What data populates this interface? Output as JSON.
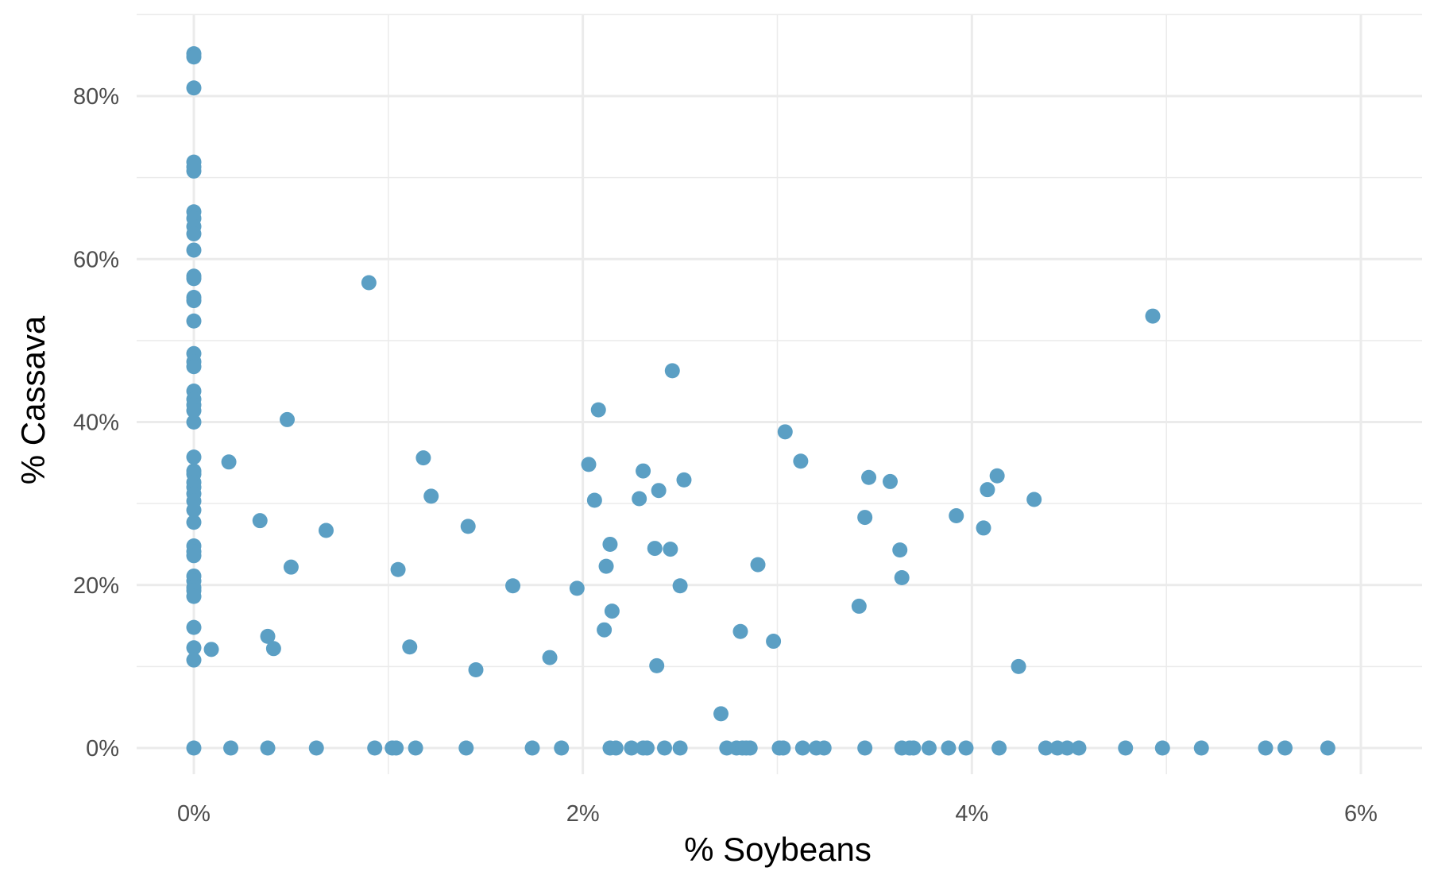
{
  "chart_data": {
    "type": "scatter",
    "title": "",
    "xlabel": "% Soybeans",
    "ylabel": "% Cassava",
    "xlim": [
      -0.3,
      6.2
    ],
    "ylim": [
      -3.5,
      88
    ],
    "x_ticks": [
      0,
      2,
      4,
      6
    ],
    "y_ticks": [
      0,
      20,
      40,
      60,
      80
    ],
    "x_tick_labels": [
      "0%",
      "2%",
      "4%",
      "6%"
    ],
    "y_tick_labels": [
      "0%",
      "20%",
      "40%",
      "60%",
      "80%"
    ],
    "grid": true,
    "point_color": "#5b9fc4",
    "points": [
      {
        "x": 0,
        "y": 85.2
      },
      {
        "x": 0,
        "y": 84.8
      },
      {
        "x": 0,
        "y": 81.0
      },
      {
        "x": 0,
        "y": 71.9
      },
      {
        "x": 0,
        "y": 71.3
      },
      {
        "x": 0,
        "y": 70.8
      },
      {
        "x": 0,
        "y": 65.8
      },
      {
        "x": 0,
        "y": 65.0
      },
      {
        "x": 0,
        "y": 64.0
      },
      {
        "x": 0,
        "y": 63.1
      },
      {
        "x": 0,
        "y": 61.1
      },
      {
        "x": 0,
        "y": 57.9
      },
      {
        "x": 0,
        "y": 57.6
      },
      {
        "x": 0,
        "y": 55.3
      },
      {
        "x": 0,
        "y": 54.9
      },
      {
        "x": 0,
        "y": 52.4
      },
      {
        "x": 0,
        "y": 48.4
      },
      {
        "x": 0,
        "y": 47.4
      },
      {
        "x": 0,
        "y": 46.8
      },
      {
        "x": 0,
        "y": 43.8
      },
      {
        "x": 0,
        "y": 42.8
      },
      {
        "x": 0,
        "y": 42.1
      },
      {
        "x": 0,
        "y": 41.4
      },
      {
        "x": 0,
        "y": 40.0
      },
      {
        "x": 0,
        "y": 35.7
      },
      {
        "x": 0,
        "y": 34.0
      },
      {
        "x": 0,
        "y": 33.6
      },
      {
        "x": 0,
        "y": 32.6
      },
      {
        "x": 0,
        "y": 32.0
      },
      {
        "x": 0,
        "y": 31.2
      },
      {
        "x": 0,
        "y": 30.3
      },
      {
        "x": 0,
        "y": 29.2
      },
      {
        "x": 0,
        "y": 27.7
      },
      {
        "x": 0,
        "y": 24.8
      },
      {
        "x": 0,
        "y": 24.1
      },
      {
        "x": 0,
        "y": 23.6
      },
      {
        "x": 0,
        "y": 21.1
      },
      {
        "x": 0,
        "y": 20.5
      },
      {
        "x": 0,
        "y": 19.7
      },
      {
        "x": 0,
        "y": 19.3
      },
      {
        "x": 0,
        "y": 18.6
      },
      {
        "x": 0,
        "y": 14.8
      },
      {
        "x": 0,
        "y": 12.3
      },
      {
        "x": 0,
        "y": 10.8
      },
      {
        "x": 0,
        "y": 0
      },
      {
        "x": 0.09,
        "y": 12.1
      },
      {
        "x": 0.18,
        "y": 35.1
      },
      {
        "x": 0.34,
        "y": 27.9
      },
      {
        "x": 0.38,
        "y": 13.7
      },
      {
        "x": 0.41,
        "y": 12.2
      },
      {
        "x": 0.48,
        "y": 40.3
      },
      {
        "x": 0.5,
        "y": 22.2
      },
      {
        "x": 0.68,
        "y": 26.7
      },
      {
        "x": 0.9,
        "y": 57.1
      },
      {
        "x": 1.05,
        "y": 21.9
      },
      {
        "x": 1.11,
        "y": 12.4
      },
      {
        "x": 1.18,
        "y": 35.6
      },
      {
        "x": 1.22,
        "y": 30.9
      },
      {
        "x": 1.41,
        "y": 27.2
      },
      {
        "x": 1.45,
        "y": 9.6
      },
      {
        "x": 1.64,
        "y": 19.9
      },
      {
        "x": 1.83,
        "y": 11.1
      },
      {
        "x": 1.97,
        "y": 19.6
      },
      {
        "x": 2.03,
        "y": 34.8
      },
      {
        "x": 2.06,
        "y": 30.4
      },
      {
        "x": 2.08,
        "y": 41.5
      },
      {
        "x": 2.11,
        "y": 14.5
      },
      {
        "x": 2.12,
        "y": 22.3
      },
      {
        "x": 2.14,
        "y": 25.0
      },
      {
        "x": 2.15,
        "y": 16.8
      },
      {
        "x": 2.29,
        "y": 30.6
      },
      {
        "x": 2.31,
        "y": 34.0
      },
      {
        "x": 2.37,
        "y": 24.5
      },
      {
        "x": 2.38,
        "y": 10.1
      },
      {
        "x": 2.39,
        "y": 31.6
      },
      {
        "x": 2.45,
        "y": 24.4
      },
      {
        "x": 2.46,
        "y": 46.3
      },
      {
        "x": 2.5,
        "y": 19.9
      },
      {
        "x": 2.52,
        "y": 32.9
      },
      {
        "x": 2.71,
        "y": 4.2
      },
      {
        "x": 2.81,
        "y": 14.3
      },
      {
        "x": 2.9,
        "y": 22.5
      },
      {
        "x": 2.98,
        "y": 13.1
      },
      {
        "x": 3.04,
        "y": 38.8
      },
      {
        "x": 3.12,
        "y": 35.2
      },
      {
        "x": 3.42,
        "y": 17.4
      },
      {
        "x": 3.45,
        "y": 28.3
      },
      {
        "x": 3.47,
        "y": 33.2
      },
      {
        "x": 3.58,
        "y": 32.7
      },
      {
        "x": 3.63,
        "y": 24.3
      },
      {
        "x": 3.64,
        "y": 20.9
      },
      {
        "x": 3.92,
        "y": 28.5
      },
      {
        "x": 4.06,
        "y": 27.0
      },
      {
        "x": 4.08,
        "y": 31.7
      },
      {
        "x": 4.13,
        "y": 33.4
      },
      {
        "x": 4.24,
        "y": 10.0
      },
      {
        "x": 4.32,
        "y": 30.5
      },
      {
        "x": 4.93,
        "y": 53.0
      },
      {
        "x": 0.19,
        "y": 0
      },
      {
        "x": 0.38,
        "y": 0
      },
      {
        "x": 0.63,
        "y": 0
      },
      {
        "x": 0.93,
        "y": 0
      },
      {
        "x": 1.02,
        "y": 0
      },
      {
        "x": 1.04,
        "y": 0
      },
      {
        "x": 1.14,
        "y": 0
      },
      {
        "x": 1.4,
        "y": 0
      },
      {
        "x": 1.74,
        "y": 0
      },
      {
        "x": 1.89,
        "y": 0
      },
      {
        "x": 2.14,
        "y": 0
      },
      {
        "x": 2.17,
        "y": 0
      },
      {
        "x": 2.25,
        "y": 0
      },
      {
        "x": 2.31,
        "y": 0
      },
      {
        "x": 2.33,
        "y": 0
      },
      {
        "x": 2.42,
        "y": 0
      },
      {
        "x": 2.5,
        "y": 0
      },
      {
        "x": 2.74,
        "y": 0
      },
      {
        "x": 2.79,
        "y": 0
      },
      {
        "x": 2.82,
        "y": 0
      },
      {
        "x": 2.84,
        "y": 0
      },
      {
        "x": 2.86,
        "y": 0
      },
      {
        "x": 3.01,
        "y": 0
      },
      {
        "x": 3.03,
        "y": 0
      },
      {
        "x": 3.13,
        "y": 0
      },
      {
        "x": 3.2,
        "y": 0
      },
      {
        "x": 3.24,
        "y": 0
      },
      {
        "x": 3.45,
        "y": 0
      },
      {
        "x": 3.64,
        "y": 0
      },
      {
        "x": 3.68,
        "y": 0
      },
      {
        "x": 3.7,
        "y": 0
      },
      {
        "x": 3.78,
        "y": 0
      },
      {
        "x": 3.88,
        "y": 0
      },
      {
        "x": 3.97,
        "y": 0
      },
      {
        "x": 4.14,
        "y": 0
      },
      {
        "x": 4.38,
        "y": 0
      },
      {
        "x": 4.44,
        "y": 0
      },
      {
        "x": 4.49,
        "y": 0
      },
      {
        "x": 4.55,
        "y": 0
      },
      {
        "x": 4.79,
        "y": 0
      },
      {
        "x": 4.98,
        "y": 0
      },
      {
        "x": 5.18,
        "y": 0
      },
      {
        "x": 5.51,
        "y": 0
      },
      {
        "x": 5.61,
        "y": 0
      },
      {
        "x": 5.83,
        "y": 0
      }
    ]
  }
}
